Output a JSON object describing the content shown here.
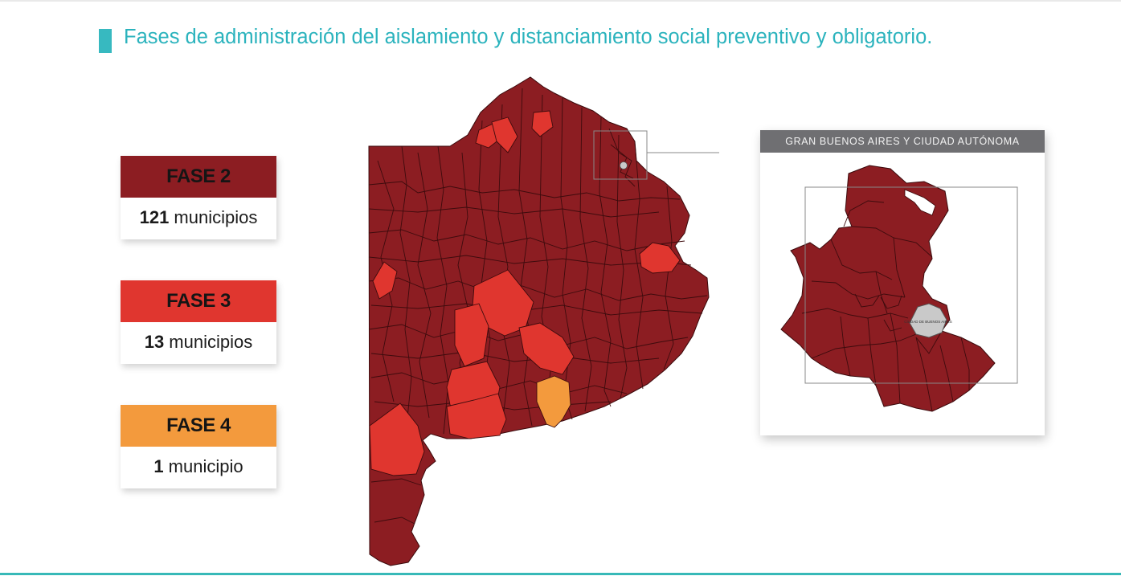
{
  "title": "Fases de administración del aislamiento y distanciamiento social preventivo y obligatorio.",
  "colors": {
    "fase2": "#8c1d22",
    "fase3": "#e0362f",
    "fase4": "#f39a3d",
    "caba": "#c9c9c9",
    "accent": "#37b9c0"
  },
  "legend": [
    {
      "phase": "FASE 2",
      "count": "121",
      "unit": "municipios",
      "color": "#8c1d22"
    },
    {
      "phase": "FASE 3",
      "count": "13",
      "unit": "municipios",
      "color": "#e0362f"
    },
    {
      "phase": "FASE 4",
      "count": "1",
      "unit": "municipio",
      "color": "#f39a3d"
    }
  ],
  "inset": {
    "header": "GRAN BUENOS AIRES Y CIUDAD AUTÓNOMA",
    "caba_label": "CIUDAD DE BUENOS AIRES"
  }
}
